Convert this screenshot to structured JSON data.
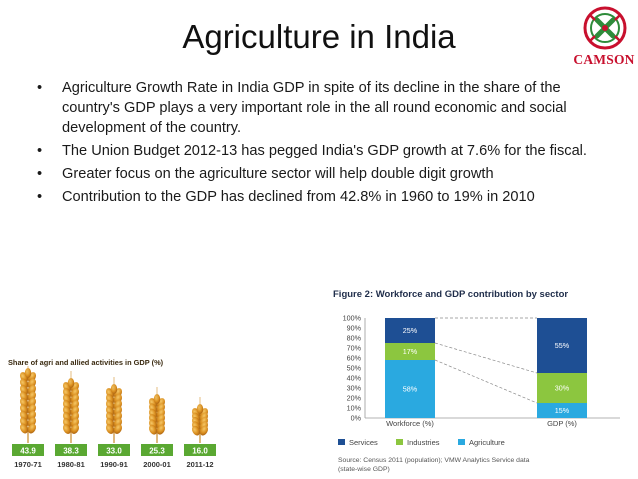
{
  "title": "Agriculture in India",
  "logo": {
    "text": "CAMSON"
  },
  "bullets": [
    "Agriculture Growth Rate in India GDP in spite of its decline in the share of the country's GDP plays a very important role in the all round economic and social development of the country.",
    "The Union Budget 2012-13 has pegged India's GDP growth at 7.6% for the fiscal.",
    "Greater focus on the agriculture sector will help double digit growth",
    "Contribution to the GDP has declined from 42.8% in 1960 to 19% in 2010"
  ],
  "wheat": {
    "title": "Share of agri and allied activities in GDP (%)",
    "values": [
      "43.9",
      "38.3",
      "33.0",
      "25.3",
      "16.0"
    ],
    "years": [
      "1970-71",
      "1980-81",
      "1990-91",
      "2000-01",
      "2011-12"
    ]
  },
  "chart_data": {
    "type": "bar",
    "title": "Figure 2: Workforce  and GDP contribution by sector",
    "categories": [
      "Workforce (%)",
      "GDP (%)"
    ],
    "series": [
      {
        "name": "Agriculture",
        "values": [
          58,
          15
        ],
        "labels": [
          "58%",
          "15%"
        ],
        "color": "#2aa9e0"
      },
      {
        "name": "Industries",
        "values": [
          17,
          30
        ],
        "labels": [
          "17%",
          "30%"
        ],
        "color": "#8cc63f"
      },
      {
        "name": "Services",
        "values": [
          25,
          55
        ],
        "labels": [
          "25%",
          "55%"
        ],
        "color": "#1e4f94"
      }
    ],
    "y_ticks": [
      "0%",
      "10%",
      "20%",
      "30%",
      "40%",
      "50%",
      "60%",
      "70%",
      "80%",
      "90%",
      "100%"
    ],
    "ylim": [
      0,
      100
    ],
    "legend": [
      "Services",
      "Industries",
      "Agriculture"
    ],
    "source_line1": "Source: Census 2011 (population); VMW Analytics Service data",
    "source_line2": "(state-wise GDP)"
  }
}
